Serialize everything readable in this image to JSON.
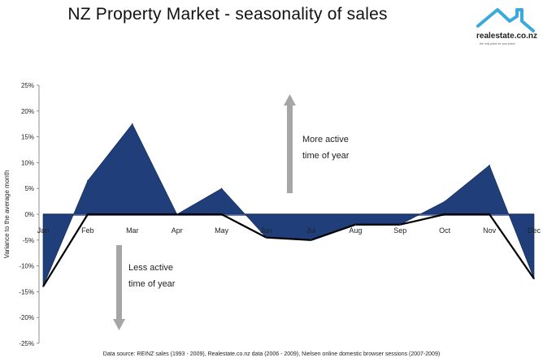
{
  "title": "NZ Property Market - seasonality of sales",
  "logo": {
    "name": "realestate.co.nz",
    "tagline": "the only place for your place",
    "colors": {
      "roof": "#3aa9dc",
      "text": "#222222"
    }
  },
  "source": "Data source: REINZ sales (1993 - 2009), Realestate.co.nz data (2006 - 2009), Nielsen online domestic browser sessions (2007-2009)",
  "annotations": {
    "up": [
      "More active",
      "time of year"
    ],
    "down": [
      "Less active",
      "time of year"
    ]
  },
  "colors": {
    "area": "#1f3e7a",
    "line": "#000000",
    "arrow": "#a6a6a6"
  },
  "chart_data": {
    "type": "area",
    "categories": [
      "Jan",
      "Feb",
      "Mar",
      "Apr",
      "May",
      "Jun",
      "Jul",
      "Aug",
      "Sep",
      "Oct",
      "Nov",
      "Dec"
    ],
    "series": [
      {
        "values": [
          -14,
          6.5,
          17.5,
          0,
          5,
          -4.5,
          -5,
          -2,
          -2,
          2.5,
          9.5,
          -12.5
        ]
      }
    ],
    "ylabel": "Variance to the average month",
    "xlabel": "",
    "ylim": [
      -25,
      25
    ],
    "yticks": [
      "25%",
      "20%",
      "15%",
      "10%",
      "5%",
      "0%",
      "-5%",
      "-10%",
      "-15%",
      "-20%",
      "-25%"
    ],
    "yticks_values": [
      25,
      20,
      15,
      10,
      5,
      0,
      -5,
      -10,
      -15,
      -20,
      -25
    ],
    "grid": false,
    "legend": "none"
  }
}
